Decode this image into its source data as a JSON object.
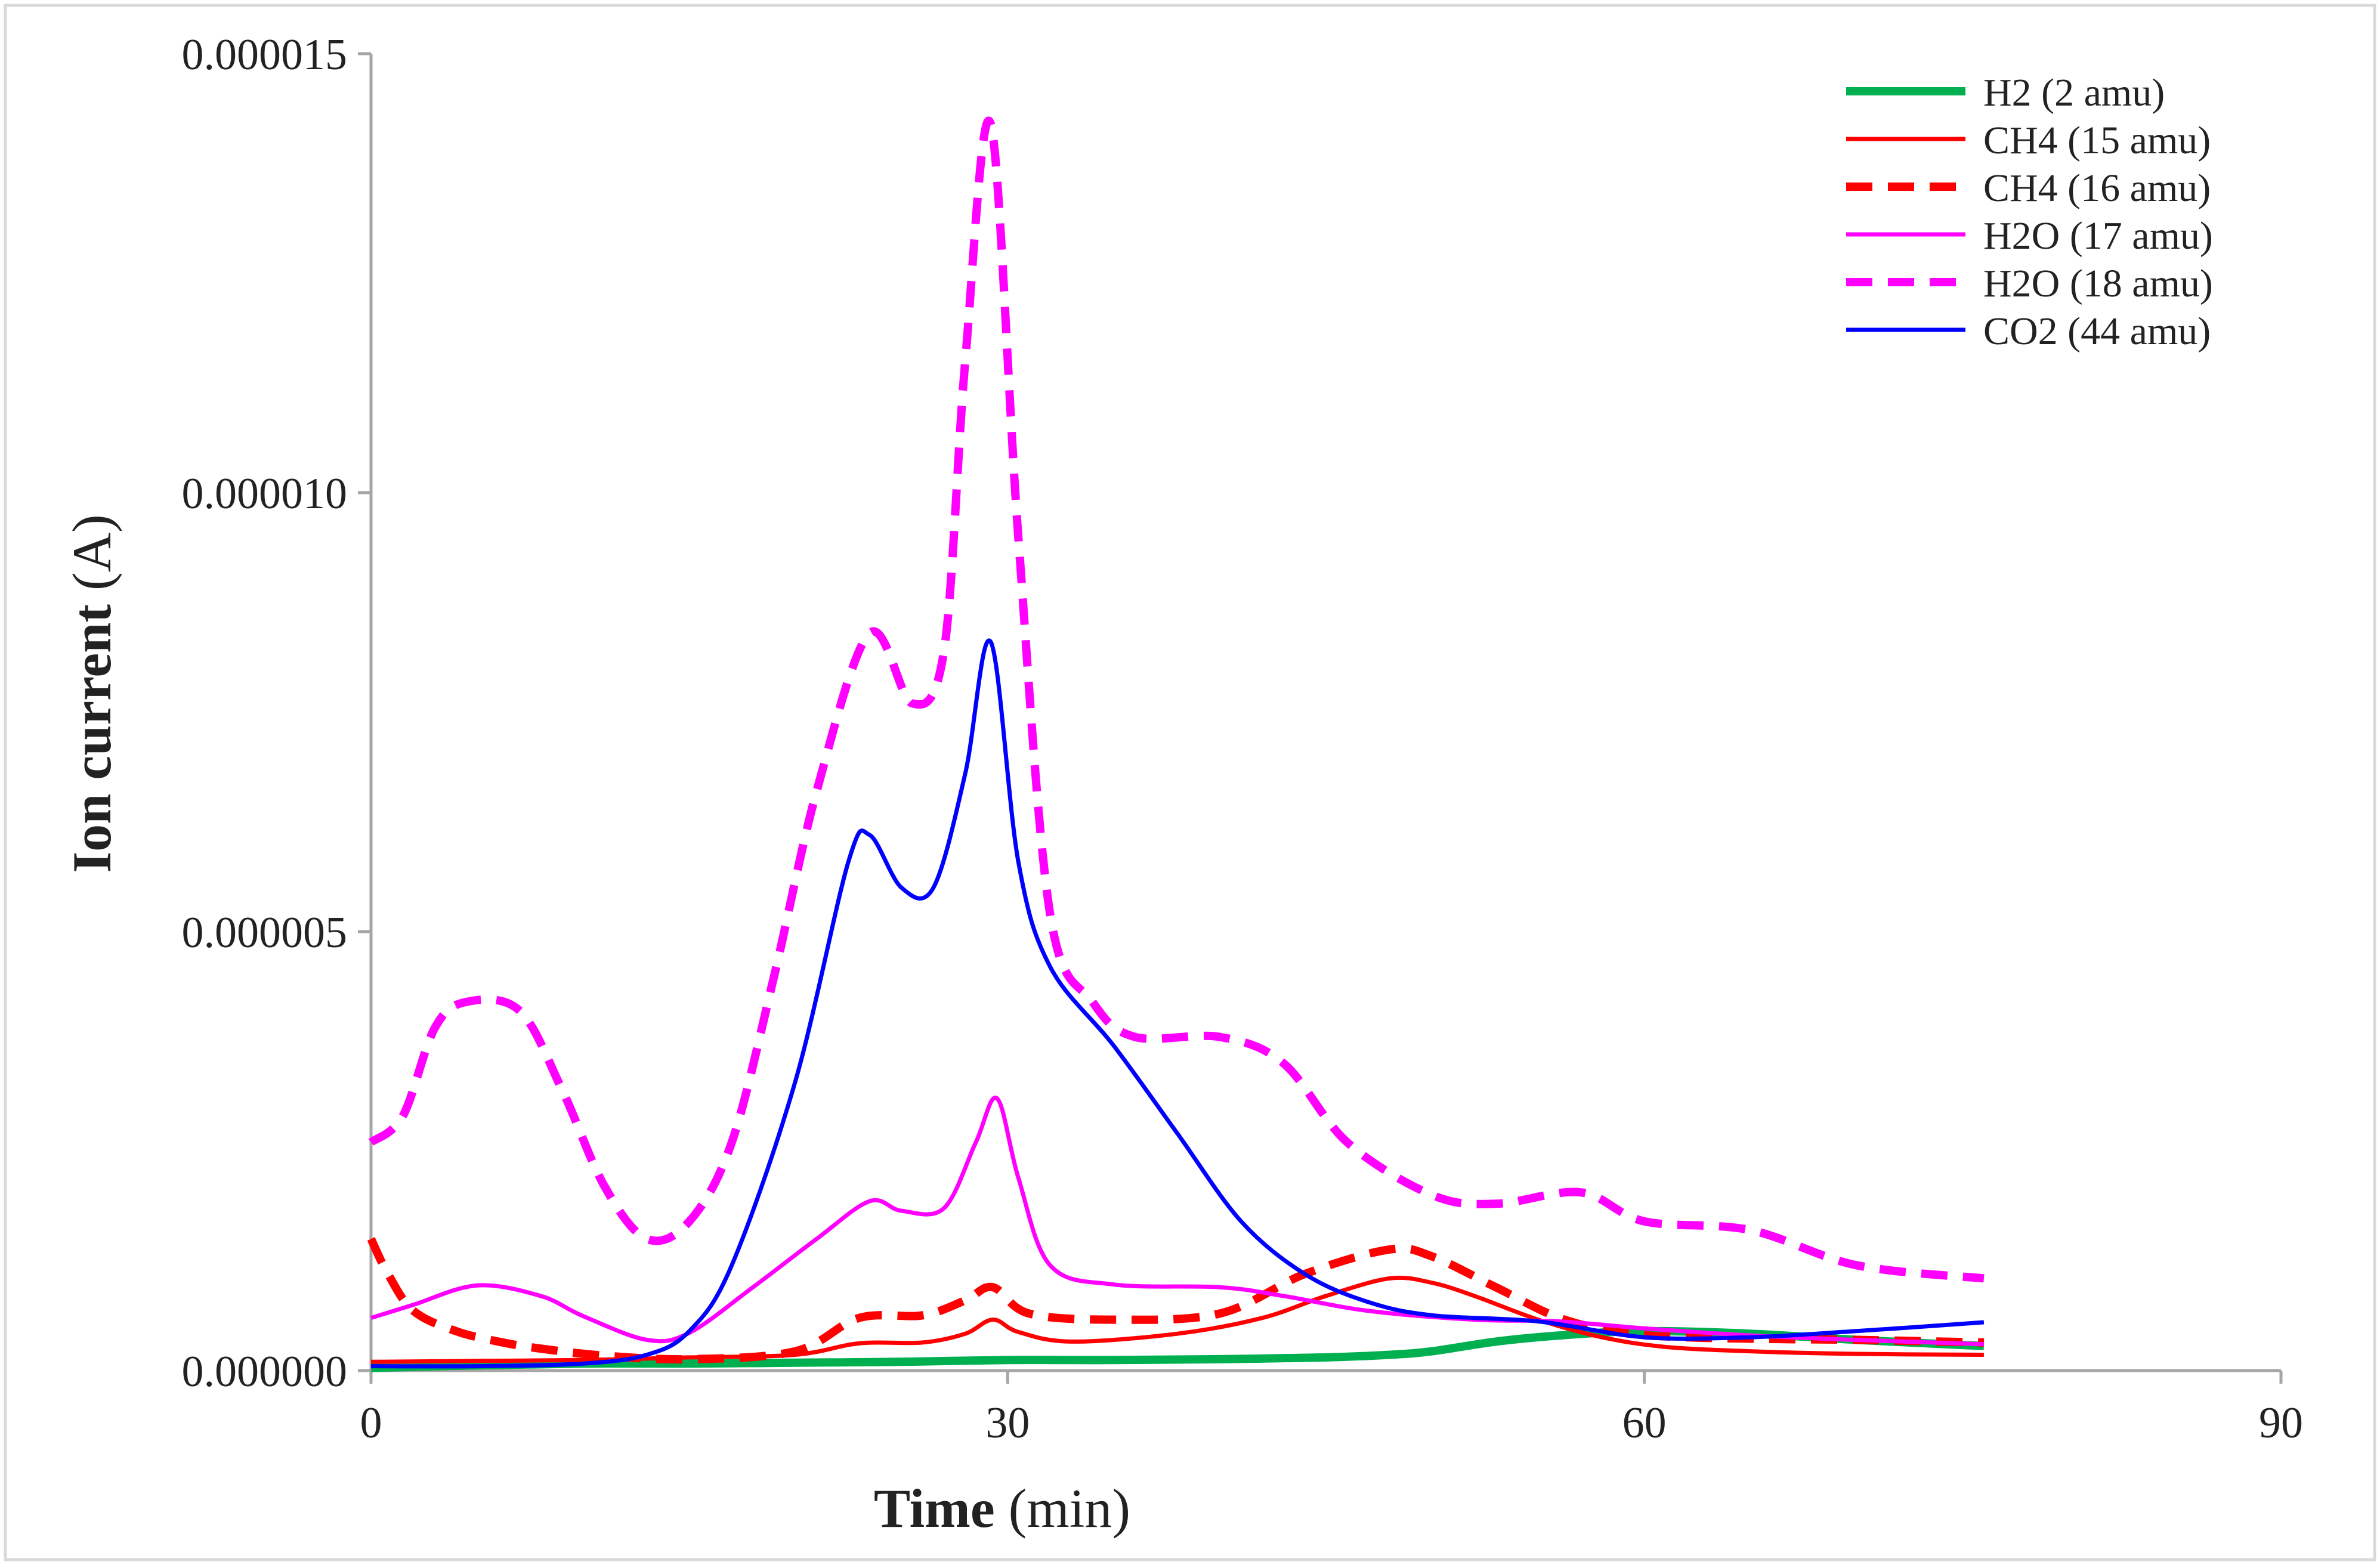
{
  "chart_data": {
    "type": "line",
    "xlabel_bold": "Time",
    "xlabel_unit": " (min)",
    "ylabel_bold": "Ion current",
    "ylabel_unit": " (A)",
    "xlim": [
      0,
      90
    ],
    "ylim": [
      0,
      1.5e-05
    ],
    "x_ticks": [
      0,
      30,
      60,
      90
    ],
    "x_tick_labels": [
      "0",
      "30",
      "60",
      "90"
    ],
    "y_ticks": [
      0,
      5e-06,
      1e-05,
      1.5e-05
    ],
    "y_tick_labels": [
      "0.000000",
      "0.000005",
      "0.000010",
      "0.000015"
    ],
    "grid": false,
    "legend_position": "top-right",
    "series": [
      {
        "name": "H2 (2 amu)",
        "color": "#00b050",
        "style": "solid",
        "width": "thick",
        "points": [
          [
            0,
            3e-08
          ],
          [
            5,
            6e-08
          ],
          [
            10,
            8e-08
          ],
          [
            15,
            8e-08
          ],
          [
            20,
            9e-08
          ],
          [
            25,
            1e-07
          ],
          [
            30,
            1.2e-07
          ],
          [
            35,
            1.2e-07
          ],
          [
            40,
            1.3e-07
          ],
          [
            45,
            1.5e-07
          ],
          [
            48,
            1.8e-07
          ],
          [
            50,
            2.2e-07
          ],
          [
            53,
            3.3e-07
          ],
          [
            56,
            4e-07
          ],
          [
            60,
            4.5e-07
          ],
          [
            65,
            4.2e-07
          ],
          [
            70,
            3.5e-07
          ],
          [
            76,
            2.8e-07
          ]
        ]
      },
      {
        "name": "CH4 (15 amu)",
        "color": "#ff0000",
        "style": "solid",
        "width": "thin",
        "points": [
          [
            0,
            1e-07
          ],
          [
            5,
            1.1e-07
          ],
          [
            10,
            1.2e-07
          ],
          [
            15,
            1.5e-07
          ],
          [
            20,
            1.8e-07
          ],
          [
            23,
            3.1e-07
          ],
          [
            26,
            3.2e-07
          ],
          [
            28,
            4.2e-07
          ],
          [
            29.3,
            5.8e-07
          ],
          [
            30.5,
            4.4e-07
          ],
          [
            33,
            3.3e-07
          ],
          [
            38,
            4.2e-07
          ],
          [
            42,
            6e-07
          ],
          [
            45,
            8.5e-07
          ],
          [
            48,
            1.05e-06
          ],
          [
            50,
            1e-06
          ],
          [
            52,
            8.5e-07
          ],
          [
            55,
            5.8e-07
          ],
          [
            58,
            3.8e-07
          ],
          [
            61,
            2.7e-07
          ],
          [
            65,
            2.2e-07
          ],
          [
            70,
            1.9e-07
          ],
          [
            76,
            1.8e-07
          ]
        ]
      },
      {
        "name": "CH4 (16 amu)",
        "color": "#ff0000",
        "style": "dash",
        "width": "thick",
        "points": [
          [
            0,
            1.5e-06
          ],
          [
            0.8,
            1.1e-06
          ],
          [
            2,
            6.8e-07
          ],
          [
            4,
            4.5e-07
          ],
          [
            6,
            3.3e-07
          ],
          [
            8,
            2.5e-07
          ],
          [
            11,
            1.7e-07
          ],
          [
            15,
            1.3e-07
          ],
          [
            20,
            2.2e-07
          ],
          [
            23,
            6e-07
          ],
          [
            26,
            6.3e-07
          ],
          [
            28,
            8e-07
          ],
          [
            29.3,
            9.5e-07
          ],
          [
            31,
            6.5e-07
          ],
          [
            35,
            5.8e-07
          ],
          [
            40,
            6.5e-07
          ],
          [
            44,
            1.1e-06
          ],
          [
            48,
            1.38e-06
          ],
          [
            50,
            1.3e-06
          ],
          [
            53,
            9.5e-07
          ],
          [
            56,
            6e-07
          ],
          [
            59,
            4.3e-07
          ],
          [
            62,
            3.8e-07
          ],
          [
            66,
            3.6e-07
          ],
          [
            70,
            3.5e-07
          ],
          [
            76,
            3.2e-07
          ]
        ]
      },
      {
        "name": "H2O (17 amu)",
        "color": "#ff00ff",
        "style": "solid",
        "width": "thin",
        "points": [
          [
            0,
            6e-07
          ],
          [
            2,
            7.5e-07
          ],
          [
            5,
            9.7e-07
          ],
          [
            8,
            8.5e-07
          ],
          [
            10,
            6.2e-07
          ],
          [
            13,
            3.5e-07
          ],
          [
            15,
            4.3e-07
          ],
          [
            18,
            9.5e-07
          ],
          [
            21,
            1.5e-06
          ],
          [
            23.5,
            1.93e-06
          ],
          [
            25,
            1.82e-06
          ],
          [
            27,
            1.85e-06
          ],
          [
            28.5,
            2.6e-06
          ],
          [
            29.5,
            3.1e-06
          ],
          [
            30.5,
            2.2e-06
          ],
          [
            32,
            1.2e-06
          ],
          [
            35,
            9.8e-07
          ],
          [
            40,
            9.5e-07
          ],
          [
            43,
            8.5e-07
          ],
          [
            47,
            6.8e-07
          ],
          [
            52,
            5.8e-07
          ],
          [
            56,
            5.6e-07
          ],
          [
            60,
            4.8e-07
          ],
          [
            65,
            4e-07
          ],
          [
            70,
            3.5e-07
          ],
          [
            76,
            3e-07
          ]
        ]
      },
      {
        "name": "H2O (18 amu)",
        "color": "#ff00ff",
        "style": "dash",
        "width": "thick",
        "points": [
          [
            0,
            2.6e-06
          ],
          [
            1.5,
            2.9e-06
          ],
          [
            3,
            3.9e-06
          ],
          [
            4.5,
            4.2e-06
          ],
          [
            7,
            4.1e-06
          ],
          [
            9,
            3.2e-06
          ],
          [
            11,
            2.1e-06
          ],
          [
            13,
            1.5e-06
          ],
          [
            15,
            1.7e-06
          ],
          [
            17,
            2.6e-06
          ],
          [
            19,
            4.5e-06
          ],
          [
            21,
            6.6e-06
          ],
          [
            23.5,
            8.4e-06
          ],
          [
            25.5,
            7.6e-06
          ],
          [
            27,
            8.2e-06
          ],
          [
            28,
            1.15e-05
          ],
          [
            29.2,
            1.42e-05
          ],
          [
            30.5,
            9.5e-06
          ],
          [
            32,
            5.2e-06
          ],
          [
            34,
            4.2e-06
          ],
          [
            36,
            3.8e-06
          ],
          [
            40,
            3.8e-06
          ],
          [
            43,
            3.5e-06
          ],
          [
            46,
            2.6e-06
          ],
          [
            50,
            2e-06
          ],
          [
            53,
            1.9e-06
          ],
          [
            57,
            2.03e-06
          ],
          [
            60,
            1.7e-06
          ],
          [
            65,
            1.6e-06
          ],
          [
            70,
            1.2e-06
          ],
          [
            76,
            1.05e-06
          ]
        ]
      },
      {
        "name": "CO2 (44 amu)",
        "color": "#0000ff",
        "style": "solid",
        "width": "thin",
        "points": [
          [
            0,
            5e-08
          ],
          [
            5,
            5e-08
          ],
          [
            10,
            8e-08
          ],
          [
            13,
            1.8e-07
          ],
          [
            15,
            4.5e-07
          ],
          [
            17,
            1.2e-06
          ],
          [
            20,
            3.3e-06
          ],
          [
            22.5,
            5.8e-06
          ],
          [
            23.5,
            6.1e-06
          ],
          [
            25,
            5.5e-06
          ],
          [
            26.5,
            5.5e-06
          ],
          [
            28,
            6.8e-06
          ],
          [
            29.2,
            8.3e-06
          ],
          [
            30.5,
            5.8e-06
          ],
          [
            32,
            4.6e-06
          ],
          [
            35,
            3.7e-06
          ],
          [
            38,
            2.7e-06
          ],
          [
            41,
            1.7e-06
          ],
          [
            44,
            1.1e-06
          ],
          [
            47,
            7.8e-07
          ],
          [
            50,
            6.3e-07
          ],
          [
            55,
            5.6e-07
          ],
          [
            60,
            3.8e-07
          ],
          [
            65,
            3.8e-07
          ],
          [
            70,
            4.5e-07
          ],
          [
            76,
            5.5e-07
          ]
        ]
      }
    ]
  }
}
